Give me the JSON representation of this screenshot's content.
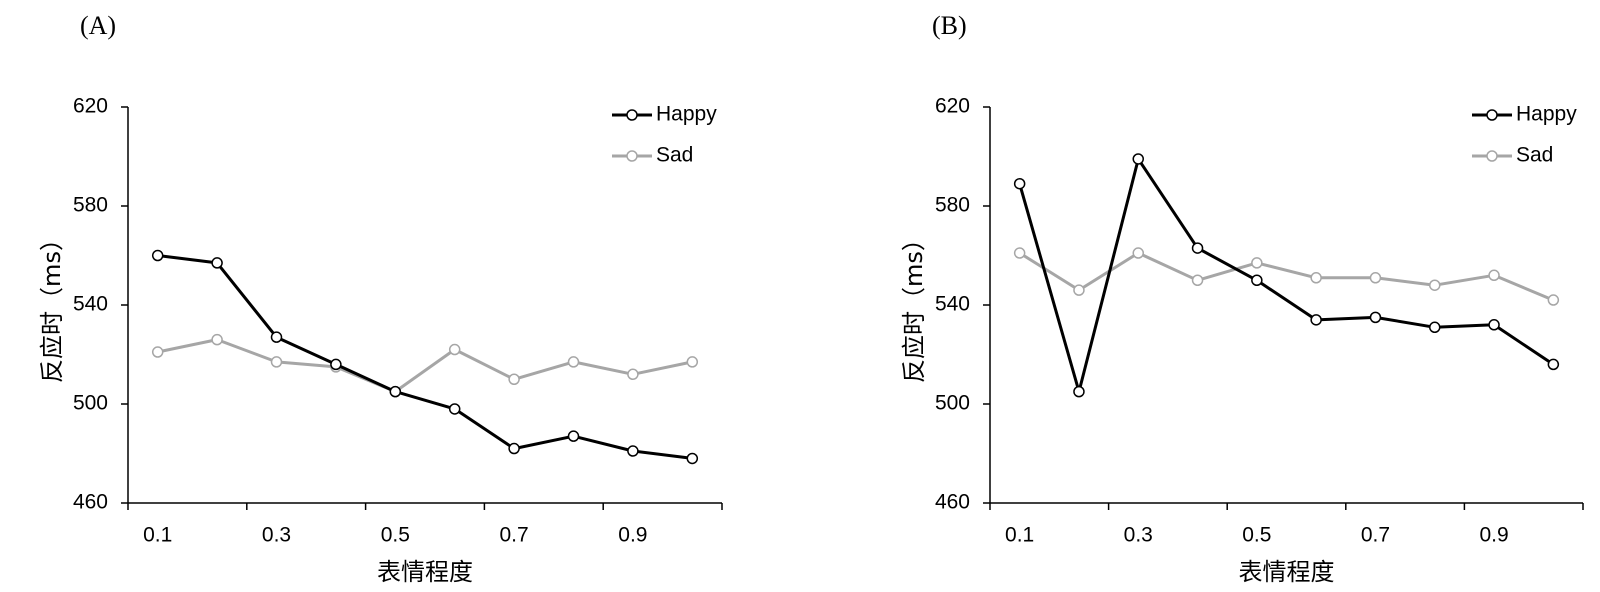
{
  "chart_data": [
    {
      "type": "line",
      "panel_label": "(A)",
      "xlabel": "表情程度",
      "ylabel": "反应时（ms）",
      "ylim": [
        460,
        620
      ],
      "yticks": [
        460,
        500,
        540,
        580,
        620
      ],
      "xlim": [
        0.05,
        1.05
      ],
      "xticks": [
        0.1,
        0.3,
        0.5,
        0.7,
        0.9
      ],
      "x": [
        0.1,
        0.2,
        0.3,
        0.4,
        0.5,
        0.6,
        0.7,
        0.8,
        0.9,
        1.0
      ],
      "legend": "top-right",
      "series": [
        {
          "name": "Happy",
          "color": "#000000",
          "values": [
            560,
            557,
            527,
            516,
            505,
            498,
            482,
            487,
            481,
            478
          ]
        },
        {
          "name": "Sad",
          "color": "#a6a6a6",
          "values": [
            521,
            526,
            517,
            515,
            505,
            522,
            510,
            517,
            512,
            517
          ]
        }
      ]
    },
    {
      "type": "line",
      "panel_label": "(B)",
      "xlabel": "表情程度",
      "ylabel": "反应时（ms）",
      "ylim": [
        460,
        620
      ],
      "yticks": [
        460,
        500,
        540,
        580,
        620
      ],
      "xlim": [
        0.05,
        1.05
      ],
      "xticks": [
        0.1,
        0.3,
        0.5,
        0.7,
        0.9
      ],
      "x": [
        0.1,
        0.2,
        0.3,
        0.4,
        0.5,
        0.6,
        0.7,
        0.8,
        0.9,
        1.0
      ],
      "legend": "top-right",
      "series": [
        {
          "name": "Happy",
          "color": "#000000",
          "values": [
            589,
            505,
            599,
            563,
            550,
            534,
            535,
            531,
            532,
            516
          ]
        },
        {
          "name": "Sad",
          "color": "#a6a6a6",
          "values": [
            561,
            546,
            561,
            550,
            557,
            551,
            551,
            548,
            552,
            542
          ]
        }
      ]
    }
  ]
}
